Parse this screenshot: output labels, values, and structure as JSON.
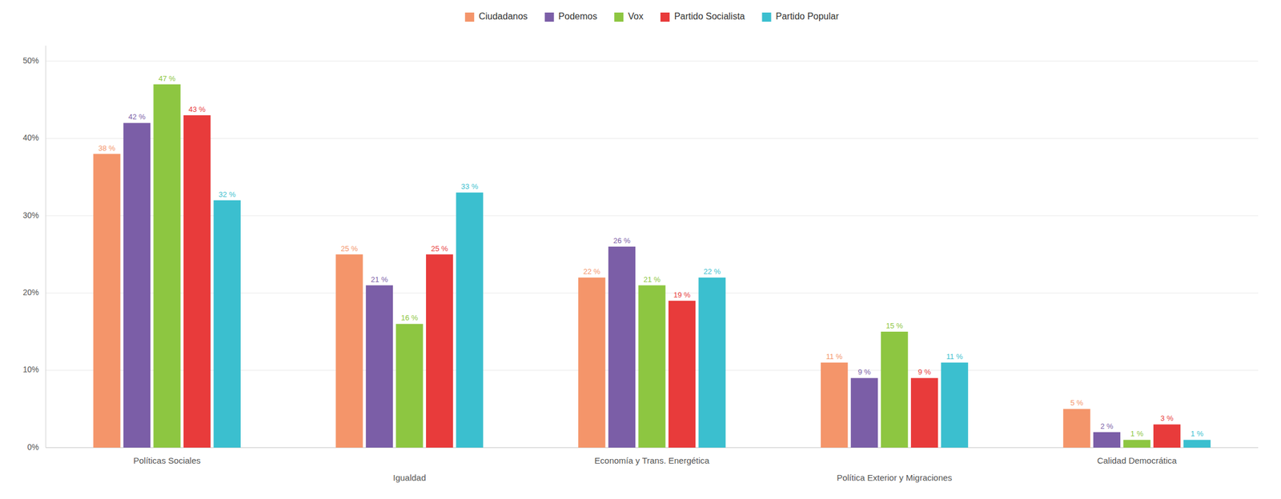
{
  "chart_data": {
    "type": "bar",
    "categories": [
      "Políticas Sociales",
      "Igualdad",
      "Economía y Trans. Energética",
      "Política Exterior y Migraciones",
      "Calidad Democrática"
    ],
    "series": [
      {
        "name": "Ciudadanos",
        "color": "#F4956A",
        "values": [
          38,
          25,
          22,
          11,
          5
        ],
        "value_labels": [
          "38 %",
          "25 %",
          "22 %",
          "11 %",
          "5 %"
        ]
      },
      {
        "name": "Podemos",
        "color": "#7B5EA7",
        "values": [
          42,
          21,
          26,
          9,
          2
        ],
        "value_labels": [
          "42 %",
          "21 %",
          "26 %",
          "9 %",
          "2 %"
        ]
      },
      {
        "name": "Vox",
        "color": "#8DC641",
        "values": [
          47,
          16,
          21,
          15,
          1
        ],
        "value_labels": [
          "47 %",
          "16 %",
          "21 %",
          "15 %",
          "1 %"
        ]
      },
      {
        "name": "Partido Socialista",
        "color": "#E83B3B",
        "values": [
          43,
          25,
          19,
          9,
          3
        ],
        "value_labels": [
          "43 %",
          "25 %",
          "19 %",
          "9 %",
          "3 %"
        ]
      },
      {
        "name": "Partido Popular",
        "color": "#3BBFCF",
        "values": [
          32,
          33,
          22,
          11,
          1
        ],
        "value_labels": [
          "32 %",
          "33 %",
          "22 %",
          "11 %",
          "1 %"
        ]
      }
    ],
    "ylim": [
      0,
      52
    ],
    "yticks": [
      {
        "value": 0,
        "label": "0%"
      },
      {
        "value": 10,
        "label": "10%"
      },
      {
        "value": 20,
        "label": "20%"
      },
      {
        "value": 30,
        "label": "30%"
      },
      {
        "value": 40,
        "label": "40%"
      },
      {
        "value": 50,
        "label": "50%"
      }
    ],
    "grid": true,
    "legend": "top",
    "data_labels": true
  }
}
